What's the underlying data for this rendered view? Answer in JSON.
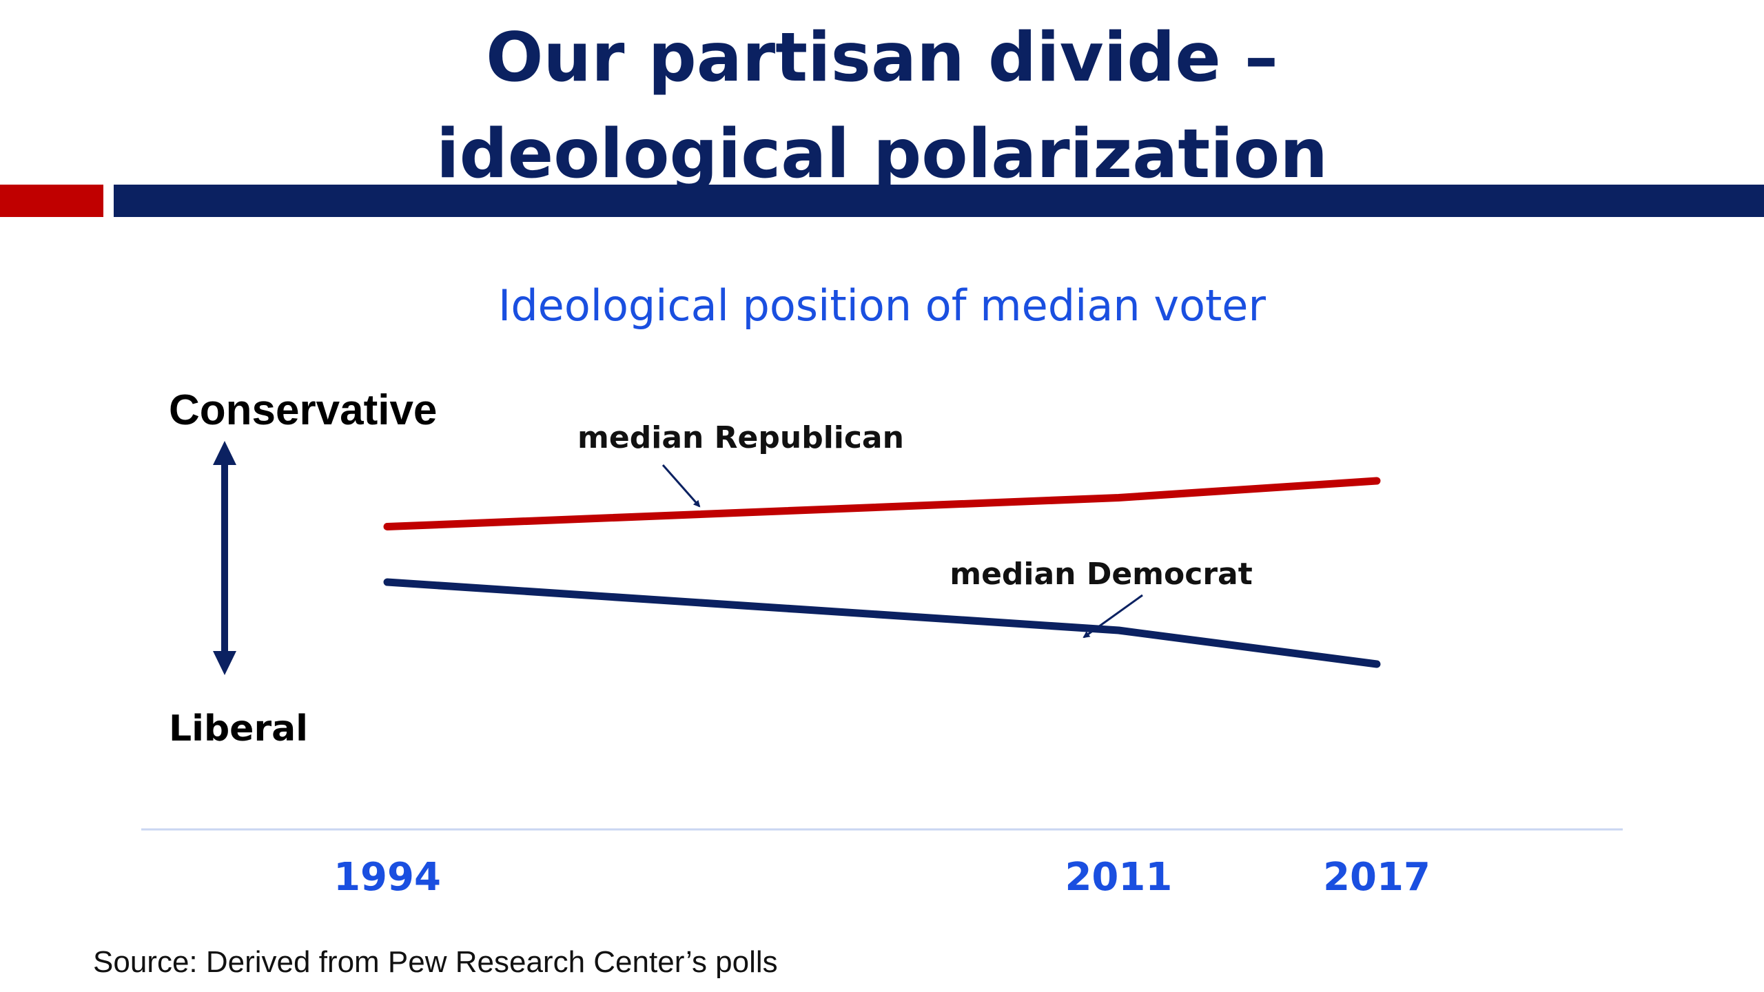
{
  "slide": {
    "title_line1": "Our partisan divide –",
    "title_line2": "ideological polarization",
    "source": "Source: Derived from Pew Research Center’s polls"
  },
  "colors": {
    "navy": "#0b2161",
    "red": "#c00000",
    "blue": "#1a4fe0",
    "axis_line": "#c9d6f2"
  },
  "chart_data": {
    "type": "line",
    "title": "Ideological position of median voter",
    "x": [
      "1994",
      "2011",
      "2017"
    ],
    "y_axis_top_label": "Conservative",
    "y_axis_bottom_label": "Liberal",
    "y_axis_arrow": "double-headed",
    "grid": false,
    "series": [
      {
        "name": "median Republican",
        "color": "#c00000",
        "values": [
          0.63,
          0.75,
          0.82
        ]
      },
      {
        "name": "median Democrat",
        "color": "#0b2161",
        "values": [
          0.4,
          0.2,
          0.06
        ]
      }
    ],
    "ylim": [
      -0.5,
      1.5
    ],
    "note": "relative positions; no numeric scale shown"
  }
}
